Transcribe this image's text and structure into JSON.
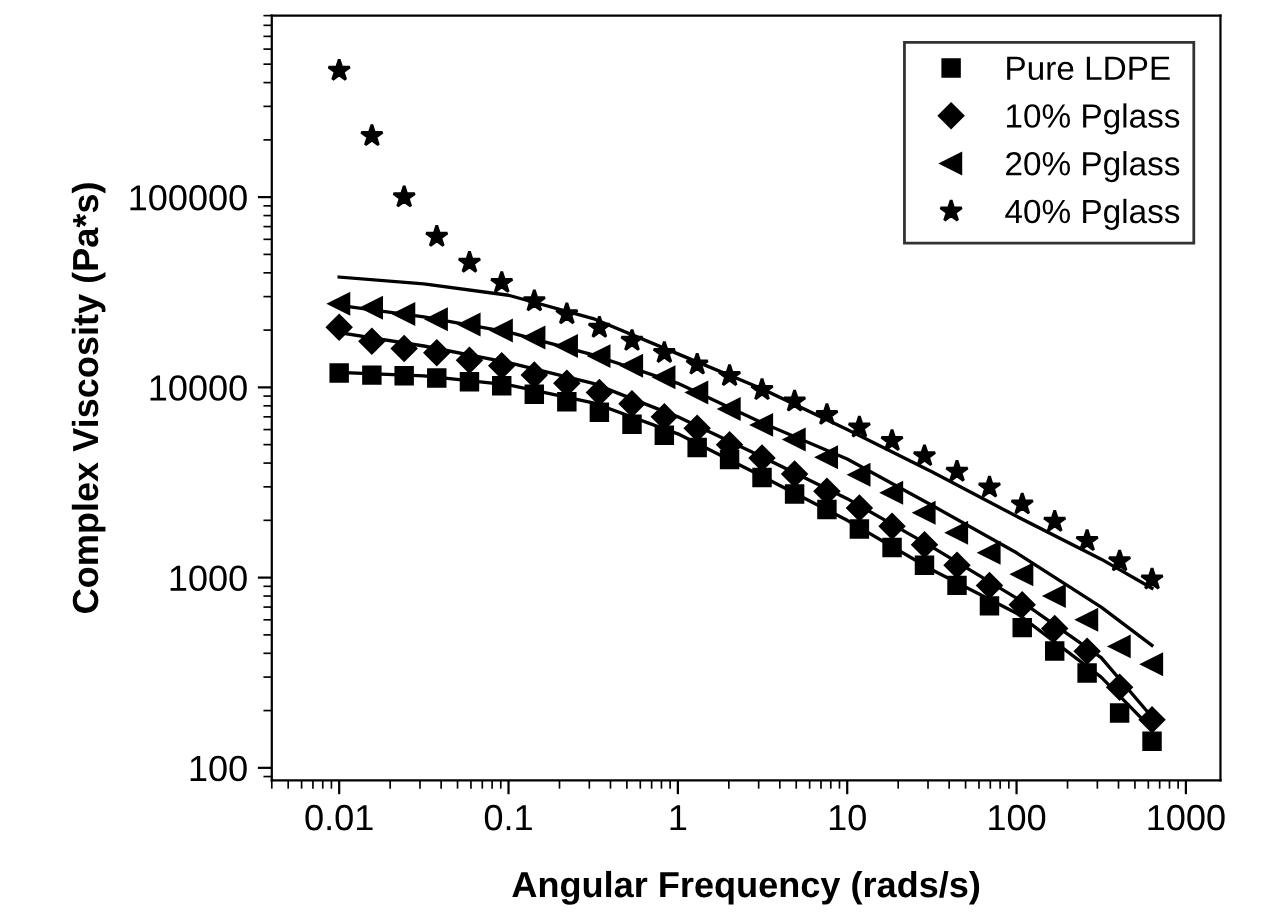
{
  "chart_data": {
    "type": "scatter",
    "xlabel": "Angular Frequency (rads/s)",
    "ylabel": "Complex Viscosity (Pa*s)",
    "log": "xy",
    "xlim": [
      0.004,
      1600
    ],
    "ylim": [
      86,
      900000
    ],
    "xticks": [
      0.01,
      0.1,
      1,
      10,
      100,
      1000
    ],
    "yticks": [
      100,
      1000,
      10000,
      100000
    ],
    "grid": false,
    "legend": "top right",
    "x": [
      0.01,
      0.0156,
      0.0242,
      0.0377,
      0.0588,
      0.0912,
      0.142,
      0.221,
      0.344,
      0.536,
      0.832,
      1.3,
      2.02,
      3.14,
      4.89,
      7.59,
      11.8,
      18.4,
      28.6,
      44.5,
      69.2,
      108,
      168,
      261,
      406,
      631
    ],
    "series": [
      {
        "name": "Pure LDPE",
        "color": "#000000",
        "marker": "square",
        "values": [
          11900,
          11600,
          11500,
          11200,
          10700,
          10200,
          9200,
          8400,
          7400,
          6400,
          5600,
          4830,
          4170,
          3360,
          2750,
          2280,
          1800,
          1440,
          1160,
          910,
          710,
          546,
          411,
          315,
          194,
          138
        ]
      },
      {
        "name": "10% Pglass",
        "color": "#000000",
        "marker": "diamond",
        "values": [
          20700,
          17500,
          16000,
          15200,
          13900,
          13000,
          11600,
          10500,
          9400,
          8200,
          7000,
          6100,
          5000,
          4250,
          3500,
          2840,
          2320,
          1860,
          1490,
          1160,
          910,
          720,
          540,
          410,
          265,
          179
        ]
      },
      {
        "name": "20% Pglass",
        "color": "#000000",
        "marker": "triangle",
        "values": [
          27500,
          26200,
          24300,
          22800,
          21400,
          19900,
          18300,
          16500,
          14600,
          13000,
          11300,
          9400,
          7700,
          6350,
          5320,
          4290,
          3470,
          2790,
          2190,
          1720,
          1350,
          1040,
          800,
          600,
          435,
          350
        ]
      },
      {
        "name": "40% Pglass",
        "color": "#000000",
        "marker": "star",
        "values": [
          463000,
          210000,
          100000,
          62000,
          45300,
          35500,
          28400,
          24300,
          20600,
          17600,
          15200,
          13200,
          11500,
          9700,
          8440,
          7180,
          6160,
          5240,
          4360,
          3610,
          2980,
          2430,
          1970,
          1560,
          1220,
          980
        ]
      },
      {
        "type": "line",
        "color": "#000000",
        "x": [
          0.01,
          0.0316,
          0.1,
          0.316,
          1,
          3.16,
          10,
          31.6,
          100,
          316,
          630
        ],
        "values": [
          12000,
          11500,
          10300,
          8300,
          5700,
          3400,
          2000,
          1100,
          650,
          300,
          160
        ]
      },
      {
        "type": "line",
        "color": "#000000",
        "x": [
          0.01,
          0.0316,
          0.1,
          0.316,
          1,
          3.16,
          10,
          31.6,
          100,
          316,
          630
        ],
        "values": [
          19400,
          16500,
          13500,
          10500,
          7000,
          4300,
          2600,
          1450,
          780,
          380,
          185
        ]
      },
      {
        "type": "line",
        "color": "#000000",
        "x": [
          0.01,
          0.0316,
          0.1,
          0.316,
          1,
          3.16,
          10,
          31.6,
          100,
          316,
          630
        ],
        "values": [
          27000,
          23500,
          19500,
          14800,
          10500,
          6500,
          4200,
          2400,
          1350,
          700,
          440
        ]
      },
      {
        "type": "line",
        "color": "#000000",
        "x": [
          0.01,
          0.0316,
          0.1,
          0.316,
          1,
          3.16,
          10,
          31.6,
          100,
          316,
          630
        ],
        "values": [
          38000,
          35000,
          30500,
          23000,
          15000,
          9800,
          6000,
          3600,
          2100,
          1250,
          880
        ]
      }
    ]
  }
}
